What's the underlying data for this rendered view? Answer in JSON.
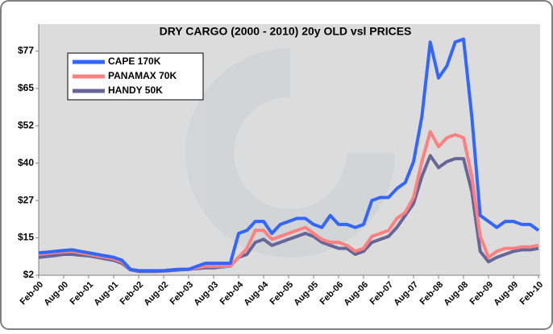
{
  "chart_data": {
    "type": "line",
    "title": "DRY CARGO (2000 - 2010) 20y OLD vsl PRICES",
    "categories": [
      "Feb-00",
      null,
      null,
      "Aug-00",
      null,
      null,
      "Feb-01",
      null,
      null,
      "Aug-01",
      null,
      null,
      "Feb-02",
      null,
      null,
      "Aug-02",
      null,
      null,
      "Feb-03",
      null,
      null,
      "Aug-03",
      null,
      null,
      "Feb-04",
      null,
      null,
      "Aug-04",
      null,
      null,
      "Feb-05",
      null,
      null,
      "Aug-05",
      null,
      null,
      "Feb-06",
      null,
      null,
      "Aug-06",
      null,
      null,
      "Feb-07",
      null,
      null,
      "Aug-07",
      null,
      null,
      "Feb-08",
      null,
      null,
      "Aug-08",
      null,
      null,
      "Feb-09",
      null,
      null,
      "Aug-09",
      null,
      null,
      "Feb-10"
    ],
    "series": [
      {
        "name": "CAPE 170K",
        "color": "#3366ff",
        "values": [
          9.5,
          9.7,
          10,
          10.3,
          10.5,
          10,
          9.5,
          9,
          8.5,
          8,
          7,
          4,
          3.5,
          3.5,
          3.5,
          3.5,
          3.8,
          4,
          4,
          5,
          6,
          6,
          6,
          6,
          16,
          17,
          20,
          20,
          16,
          19,
          20,
          21,
          21,
          19,
          18,
          22,
          19,
          19,
          18,
          19,
          27,
          28,
          28,
          31,
          33,
          40,
          55,
          80,
          68,
          72,
          80,
          81,
          55,
          22,
          20,
          18,
          20,
          20,
          19,
          19,
          17
        ]
      },
      {
        "name": "PANAMAX 70K",
        "color": "#ff8080",
        "values": [
          9,
          9.3,
          9.6,
          9.8,
          10,
          9.5,
          9,
          8.5,
          8,
          7.5,
          6.5,
          4,
          3.5,
          3.5,
          3.5,
          3.6,
          3.8,
          4,
          4,
          4.5,
          5,
          5,
          5,
          5,
          8,
          11,
          17,
          17,
          14,
          15,
          16,
          17,
          18,
          16,
          14,
          13,
          13,
          12,
          10,
          11,
          15,
          16,
          17,
          21,
          23,
          28,
          40,
          50,
          45,
          48,
          49,
          48,
          35,
          15,
          8,
          10,
          11,
          11,
          11.5,
          11.5,
          12
        ]
      },
      {
        "name": "HANDY 50K",
        "color": "#666699",
        "values": [
          8,
          8.3,
          8.6,
          9,
          9,
          8.7,
          8.5,
          8,
          7.5,
          7,
          6,
          3.8,
          3.3,
          3.3,
          3.3,
          3.4,
          3.6,
          3.8,
          4,
          4.2,
          4.5,
          4.5,
          4.8,
          5,
          8,
          9,
          13,
          14,
          12,
          13,
          14,
          15,
          16,
          15,
          13,
          12,
          11,
          11,
          9,
          10,
          13,
          14,
          15,
          18,
          22,
          26,
          35,
          42,
          38,
          40,
          41,
          41,
          30,
          10,
          6.5,
          8,
          9,
          10,
          10.5,
          10.5,
          11
        ]
      }
    ],
    "ylim": [
      2,
      86
    ],
    "yticks": [
      {
        "value": 2,
        "label": "$2"
      },
      {
        "value": 14.5,
        "label": "$15"
      },
      {
        "value": 27,
        "label": "$27"
      },
      {
        "value": 39.5,
        "label": "$40"
      },
      {
        "value": 52,
        "label": "$52"
      },
      {
        "value": 64.5,
        "label": "$65"
      },
      {
        "value": 77,
        "label": "$77"
      }
    ],
    "legend": "upper left"
  }
}
